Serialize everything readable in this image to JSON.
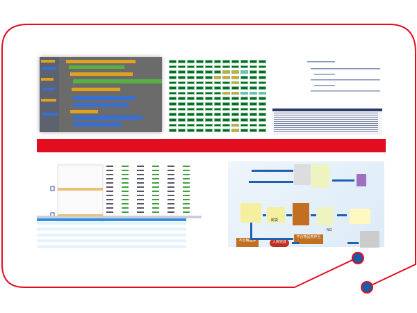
{
  "colors": {
    "frame": "#e30d22",
    "band": "#e30d22",
    "dot": "#1d5aa8",
    "grid_ok": "#0a6a2a",
    "grid_warn": "#f0a020",
    "grid_info": "#50c8d8"
  },
  "flow": {
    "labels": [
      "卸货",
      "不合格品暂存区",
      "不合格品库",
      "入库完成",
      "NG"
    ]
  },
  "panels": [
    "block-editor-screenshot",
    "status-grid-screenshot",
    "code-editor-screenshot",
    "data-table-screenshot",
    "warehouse-flow-diagram"
  ]
}
